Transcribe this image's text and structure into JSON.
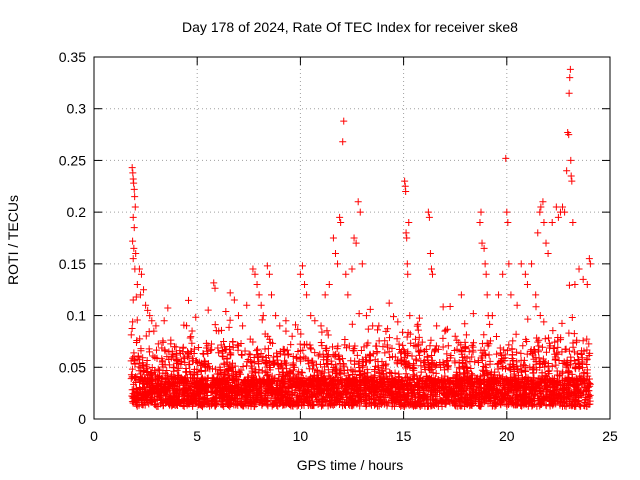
{
  "chart_data": {
    "type": "scatter",
    "title": "Day 178 of 2024, Rate Of TEC Index for receiver ske8",
    "xlabel": "GPS time / hours",
    "ylabel": "ROTI / TECUs",
    "xlim": [
      0,
      25
    ],
    "ylim": [
      0,
      0.35
    ],
    "xticks": [
      0,
      5,
      10,
      15,
      20,
      25
    ],
    "xtick_labels": [
      "0",
      "5",
      "10",
      "15",
      "20",
      "25"
    ],
    "yticks": [
      0,
      0.05,
      0.1,
      0.15,
      0.2,
      0.25,
      0.3,
      0.35
    ],
    "ytick_labels": [
      "0",
      "0.05",
      "0.1",
      "0.15",
      "0.2",
      "0.25",
      "0.3",
      "0.35"
    ],
    "grid": true,
    "marker": "+",
    "color": "#ff0000",
    "series": [
      {
        "name": "ROTI",
        "points": [
          [
            1.85,
            0.243
          ],
          [
            1.88,
            0.238
          ],
          [
            1.9,
            0.232
          ],
          [
            1.92,
            0.228
          ],
          [
            1.95,
            0.222
          ],
          [
            1.97,
            0.215
          ],
          [
            2.0,
            0.205
          ],
          [
            1.9,
            0.195
          ],
          [
            1.95,
            0.185
          ],
          [
            1.87,
            0.172
          ],
          [
            1.93,
            0.165
          ],
          [
            1.9,
            0.155
          ],
          [
            2.02,
            0.16
          ],
          [
            1.98,
            0.145
          ],
          [
            2.2,
            0.145
          ],
          [
            2.3,
            0.14
          ],
          [
            2.1,
            0.13
          ],
          [
            2.4,
            0.125
          ],
          [
            2.25,
            0.12
          ],
          [
            1.9,
            0.115
          ],
          [
            2.05,
            0.118
          ],
          [
            2.5,
            0.11
          ],
          [
            2.6,
            0.105
          ],
          [
            2.7,
            0.1
          ],
          [
            2.8,
            0.095
          ],
          [
            3.0,
            0.09
          ],
          [
            3.4,
            0.095
          ],
          [
            2.9,
            0.085
          ],
          [
            3.9,
            0.07
          ],
          [
            4.3,
            0.065
          ],
          [
            4.6,
            0.06
          ],
          [
            5.1,
            0.055
          ],
          [
            5.5,
            0.05
          ],
          [
            6.1,
            0.05
          ],
          [
            6.6,
            0.122
          ],
          [
            6.8,
            0.115
          ],
          [
            7.0,
            0.1
          ],
          [
            7.2,
            0.09
          ],
          [
            7.4,
            0.11
          ],
          [
            7.7,
            0.145
          ],
          [
            7.8,
            0.14
          ],
          [
            7.9,
            0.13
          ],
          [
            8.0,
            0.12
          ],
          [
            8.1,
            0.11
          ],
          [
            8.2,
            0.1
          ],
          [
            8.4,
            0.148
          ],
          [
            8.5,
            0.14
          ],
          [
            8.6,
            0.12
          ],
          [
            8.8,
            0.1
          ],
          [
            9.0,
            0.09
          ],
          [
            9.3,
            0.085
          ],
          [
            9.6,
            0.08
          ],
          [
            10.0,
            0.14
          ],
          [
            10.1,
            0.148
          ],
          [
            10.2,
            0.13
          ],
          [
            10.3,
            0.12
          ],
          [
            10.5,
            0.1
          ],
          [
            10.7,
            0.095
          ],
          [
            11.0,
            0.09
          ],
          [
            11.2,
            0.12
          ],
          [
            11.4,
            0.13
          ],
          [
            11.6,
            0.175
          ],
          [
            11.7,
            0.16
          ],
          [
            11.8,
            0.15
          ],
          [
            11.9,
            0.195
          ],
          [
            11.95,
            0.19
          ],
          [
            12.05,
            0.268
          ],
          [
            12.1,
            0.288
          ],
          [
            12.2,
            0.14
          ],
          [
            12.3,
            0.12
          ],
          [
            12.5,
            0.145
          ],
          [
            12.6,
            0.175
          ],
          [
            12.7,
            0.17
          ],
          [
            12.8,
            0.21
          ],
          [
            12.9,
            0.2
          ],
          [
            13.0,
            0.15
          ],
          [
            13.2,
            0.1
          ],
          [
            13.5,
            0.09
          ],
          [
            13.8,
            0.09
          ],
          [
            14.0,
            0.07
          ],
          [
            14.3,
            0.065
          ],
          [
            14.6,
            0.06
          ],
          [
            14.9,
            0.065
          ],
          [
            15.05,
            0.23
          ],
          [
            15.08,
            0.225
          ],
          [
            15.1,
            0.22
          ],
          [
            15.12,
            0.18
          ],
          [
            15.15,
            0.175
          ],
          [
            15.18,
            0.15
          ],
          [
            15.2,
            0.14
          ],
          [
            15.25,
            0.19
          ],
          [
            15.3,
            0.1
          ],
          [
            15.6,
            0.07
          ],
          [
            16.0,
            0.065
          ],
          [
            16.2,
            0.2
          ],
          [
            16.25,
            0.195
          ],
          [
            16.3,
            0.16
          ],
          [
            16.35,
            0.145
          ],
          [
            16.4,
            0.14
          ],
          [
            16.6,
            0.09
          ],
          [
            17.0,
            0.085
          ],
          [
            17.5,
            0.08
          ],
          [
            17.8,
            0.12
          ],
          [
            18.0,
            0.07
          ],
          [
            18.3,
            0.06
          ],
          [
            18.7,
            0.19
          ],
          [
            18.75,
            0.2
          ],
          [
            18.8,
            0.17
          ],
          [
            18.9,
            0.165
          ],
          [
            18.95,
            0.15
          ],
          [
            19.0,
            0.14
          ],
          [
            19.05,
            0.12
          ],
          [
            19.1,
            0.1
          ],
          [
            19.3,
            0.1
          ],
          [
            19.6,
            0.12
          ],
          [
            19.8,
            0.14
          ],
          [
            19.95,
            0.252
          ],
          [
            20.0,
            0.2
          ],
          [
            20.05,
            0.19
          ],
          [
            20.1,
            0.15
          ],
          [
            20.2,
            0.12
          ],
          [
            20.5,
            0.11
          ],
          [
            20.7,
            0.15
          ],
          [
            20.9,
            0.14
          ],
          [
            21.0,
            0.13
          ],
          [
            21.2,
            0.15
          ],
          [
            21.4,
            0.12
          ],
          [
            21.5,
            0.18
          ],
          [
            21.6,
            0.2
          ],
          [
            21.65,
            0.205
          ],
          [
            21.75,
            0.21
          ],
          [
            21.8,
            0.19
          ],
          [
            21.9,
            0.17
          ],
          [
            22.0,
            0.16
          ],
          [
            22.2,
            0.19
          ],
          [
            22.4,
            0.205
          ],
          [
            22.5,
            0.195
          ],
          [
            22.6,
            0.2
          ],
          [
            22.7,
            0.205
          ],
          [
            22.8,
            0.2
          ],
          [
            22.9,
            0.24
          ],
          [
            22.95,
            0.277
          ],
          [
            23.0,
            0.275
          ],
          [
            23.02,
            0.315
          ],
          [
            23.05,
            0.33
          ],
          [
            23.08,
            0.338
          ],
          [
            23.1,
            0.25
          ],
          [
            23.12,
            0.235
          ],
          [
            23.15,
            0.23
          ],
          [
            23.2,
            0.19
          ],
          [
            23.3,
            0.13
          ],
          [
            23.5,
            0.145
          ],
          [
            23.7,
            0.135
          ],
          [
            23.9,
            0.13
          ],
          [
            24.0,
            0.155
          ],
          [
            24.05,
            0.15
          ]
        ]
      }
    ]
  }
}
